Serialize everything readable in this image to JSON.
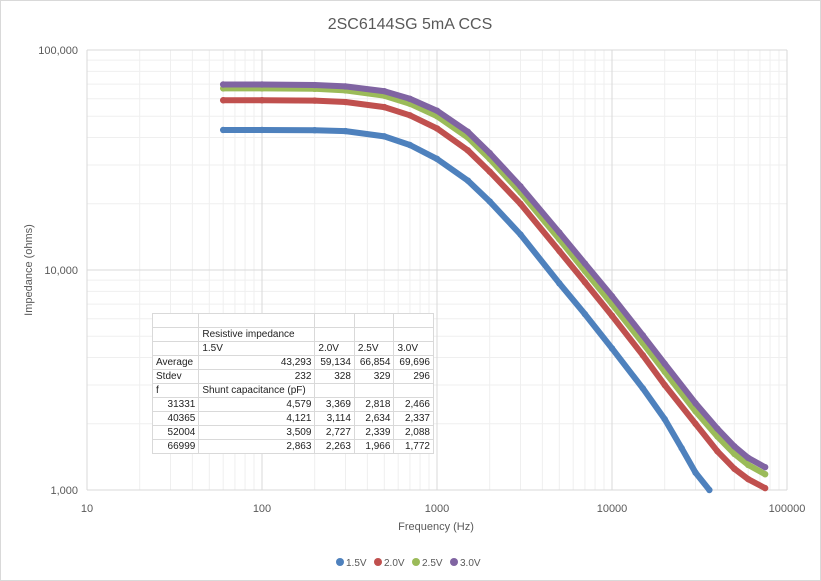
{
  "chart_data": {
    "type": "line",
    "title": "2SC6144SG 5mA CCS",
    "xlabel": "Frequency (Hz)",
    "ylabel": "Impedance (ohms)",
    "x_scale": "log",
    "y_scale": "log",
    "xlim": [
      10,
      100000
    ],
    "ylim": [
      1000,
      100000
    ],
    "x_ticks": [
      "10",
      "100",
      "1000",
      "10000",
      "100000"
    ],
    "y_ticks": [
      "1,000",
      "10,000",
      "100,000"
    ],
    "grid": true,
    "legend_position": "bottom",
    "series": [
      {
        "name": "1.5V",
        "color": "#4e81bd",
        "points": [
          [
            60,
            43300
          ],
          [
            100,
            43300
          ],
          [
            200,
            43200
          ],
          [
            300,
            42800
          ],
          [
            500,
            40500
          ],
          [
            700,
            37000
          ],
          [
            1000,
            32000
          ],
          [
            1500,
            25500
          ],
          [
            2000,
            20500
          ],
          [
            3000,
            14500
          ],
          [
            5000,
            8700
          ],
          [
            7000,
            6300
          ],
          [
            10000,
            4400
          ],
          [
            15000,
            2900
          ],
          [
            20000,
            2100
          ],
          [
            25000,
            1550
          ],
          [
            30000,
            1200
          ],
          [
            36000,
            1000
          ]
        ]
      },
      {
        "name": "2.0V",
        "color": "#c0504e",
        "points": [
          [
            60,
            59100
          ],
          [
            100,
            59100
          ],
          [
            200,
            58900
          ],
          [
            300,
            58000
          ],
          [
            500,
            55000
          ],
          [
            700,
            50500
          ],
          [
            1000,
            44000
          ],
          [
            1500,
            35000
          ],
          [
            2000,
            28000
          ],
          [
            3000,
            20000
          ],
          [
            5000,
            12200
          ],
          [
            7000,
            8800
          ],
          [
            10000,
            6200
          ],
          [
            15000,
            4100
          ],
          [
            20000,
            3000
          ],
          [
            30000,
            2000
          ],
          [
            40000,
            1500
          ],
          [
            50000,
            1250
          ],
          [
            60000,
            1120
          ],
          [
            75000,
            1020
          ]
        ]
      },
      {
        "name": "2.5V",
        "color": "#9bbb59",
        "points": [
          [
            60,
            66900
          ],
          [
            100,
            66900
          ],
          [
            200,
            66600
          ],
          [
            300,
            65500
          ],
          [
            500,
            62000
          ],
          [
            700,
            57000
          ],
          [
            1000,
            50000
          ],
          [
            1500,
            40000
          ],
          [
            2000,
            32000
          ],
          [
            3000,
            22500
          ],
          [
            5000,
            13800
          ],
          [
            7000,
            9900
          ],
          [
            10000,
            7000
          ],
          [
            15000,
            4650
          ],
          [
            20000,
            3450
          ],
          [
            30000,
            2280
          ],
          [
            40000,
            1750
          ],
          [
            50000,
            1460
          ],
          [
            60000,
            1300
          ],
          [
            75000,
            1180
          ]
        ]
      },
      {
        "name": "3.0V",
        "color": "#8064a2",
        "points": [
          [
            60,
            69700
          ],
          [
            100,
            69700
          ],
          [
            200,
            69300
          ],
          [
            300,
            68300
          ],
          [
            500,
            65000
          ],
          [
            700,
            60000
          ],
          [
            1000,
            53000
          ],
          [
            1500,
            42500
          ],
          [
            2000,
            34000
          ],
          [
            3000,
            24000
          ],
          [
            5000,
            14800
          ],
          [
            7000,
            10700
          ],
          [
            10000,
            7600
          ],
          [
            15000,
            5050
          ],
          [
            20000,
            3750
          ],
          [
            30000,
            2480
          ],
          [
            40000,
            1900
          ],
          [
            50000,
            1580
          ],
          [
            60000,
            1400
          ],
          [
            75000,
            1270
          ]
        ]
      }
    ]
  },
  "table": {
    "rows": [
      [
        "",
        "",
        "",
        "",
        ""
      ],
      [
        "",
        "Resistive impedance",
        "",
        "",
        ""
      ],
      [
        "",
        "1.5V",
        "2.0V",
        "2.5V",
        "3.0V"
      ],
      [
        "Average",
        "43,293",
        "59,134",
        "66,854",
        "69,696"
      ],
      [
        "Stdev",
        "232",
        "328",
        "329",
        "296"
      ],
      [
        "f",
        "Shunt capacitance (pF)",
        "",
        "",
        ""
      ],
      [
        "31331",
        "4,579",
        "3,369",
        "2,818",
        "2,466"
      ],
      [
        "40365",
        "4,121",
        "3,114",
        "2,634",
        "2,337"
      ],
      [
        "52004",
        "3,509",
        "2,727",
        "2,339",
        "2,088"
      ],
      [
        "66999",
        "2,863",
        "2,263",
        "1,966",
        "1,772"
      ]
    ]
  }
}
